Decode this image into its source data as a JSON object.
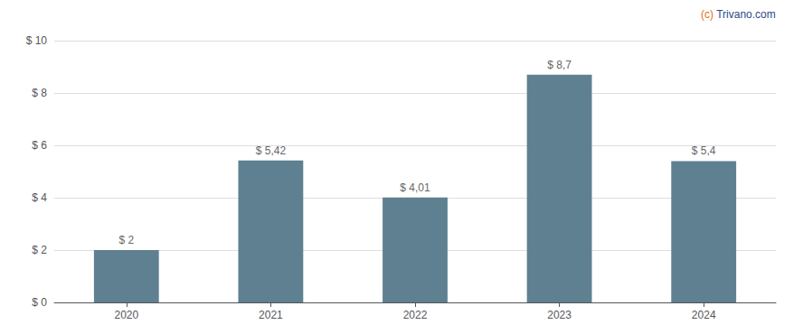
{
  "chart_data": {
    "type": "bar",
    "categories": [
      "2020",
      "2021",
      "2022",
      "2023",
      "2024"
    ],
    "values": [
      2.0,
      5.42,
      4.01,
      8.7,
      5.4
    ],
    "value_labels": [
      "$ 2",
      "$ 5,42",
      "$ 4,01",
      "$ 8,7",
      "$ 5,4"
    ],
    "data_labels": true,
    "color": "#5f8090",
    "ylim": [
      0,
      10
    ],
    "yticks": [
      {
        "value": 0,
        "label": "$ 0"
      },
      {
        "value": 2,
        "label": "$ 2"
      },
      {
        "value": 4,
        "label": "$ 4"
      },
      {
        "value": 6,
        "label": "$ 6"
      },
      {
        "value": 8,
        "label": "$ 8"
      },
      {
        "value": 10,
        "label": "$ 10"
      }
    ],
    "grid": true,
    "annotations": [
      {
        "text": "(c) Trivano.com",
        "color": "#2c4a8a"
      },
      {
        "text": "(c)",
        "color": "#e07020"
      }
    ]
  }
}
